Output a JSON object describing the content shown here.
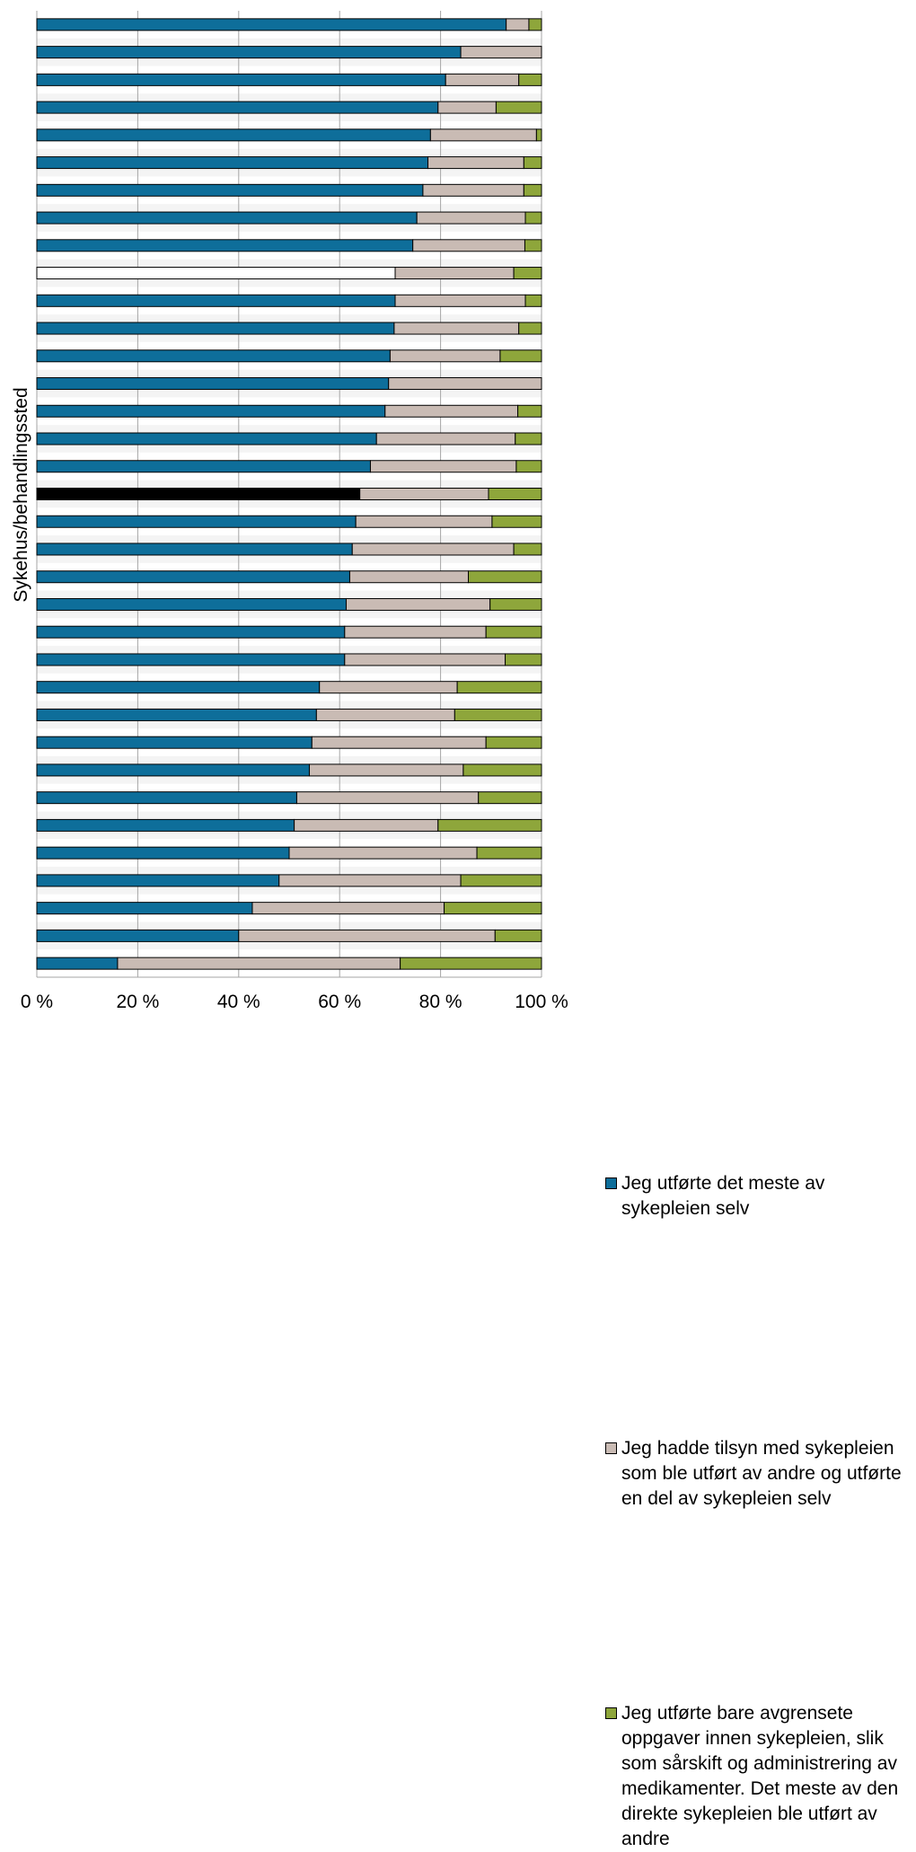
{
  "chart_data": {
    "type": "bar",
    "orientation": "horizontal",
    "stacked": true,
    "percent_stacked": true,
    "ylabel": "Sykehus/behandlingssted",
    "xlabel": "",
    "xlim": [
      0,
      100
    ],
    "x_ticks": [
      "0 %",
      "20 %",
      "40 %",
      "60 %",
      "80 %",
      "100 %"
    ],
    "grid": true,
    "legend_position": "right",
    "highlight": [
      {
        "index": 9,
        "style": "outline-white"
      },
      {
        "index": 17,
        "style": "black"
      }
    ],
    "series": [
      {
        "name": "Jeg utførte det meste av sykepleien selv",
        "color": "#0e6e9a",
        "values": [
          93,
          84,
          81,
          79.5,
          78,
          77.5,
          76.5,
          75.3,
          74.5,
          71,
          71,
          70.8,
          70,
          69.7,
          69,
          67.3,
          66.1,
          64,
          63.2,
          62.5,
          62,
          61.3,
          61,
          61,
          56,
          55.4,
          54.5,
          54,
          51.5,
          51,
          50,
          48,
          42.7,
          40,
          16
        ]
      },
      {
        "name": "Jeg hadde tilsyn med sykepleien som ble utført av andre og utførte en del av sykepleien selv",
        "color": "#c9bbb4",
        "values": [
          4.5,
          16,
          14.5,
          11.5,
          21,
          19,
          20,
          21.5,
          22.2,
          23.5,
          25.8,
          24.7,
          21.8,
          30.3,
          26.3,
          27.5,
          28.9,
          25.5,
          27,
          32,
          23.5,
          28.5,
          28,
          31.8,
          27.3,
          27.4,
          34.5,
          30.5,
          36,
          28.5,
          37.2,
          36,
          38,
          50.8,
          56
        ]
      },
      {
        "name": "Jeg utførte bare avgrensete oppgaver innen sykepleien, slik som sårskift og administrering av medikamenter. Det meste av den direkte sykepleien ble utført av andre",
        "color": "#8ea63b",
        "values": [
          2.5,
          0,
          4.5,
          9,
          1,
          3.5,
          3.5,
          3.2,
          3.3,
          5.5,
          3.2,
          4.5,
          8.2,
          0,
          4.7,
          5.2,
          5,
          10.5,
          9.8,
          5.5,
          14.5,
          10.2,
          11,
          7.2,
          16.7,
          17.2,
          11,
          15.5,
          12.5,
          20.5,
          12.8,
          16,
          19.3,
          9.2,
          28
        ]
      }
    ]
  },
  "legend": {
    "items": [
      {
        "label": "Jeg utførte det meste av sykepleien selv",
        "color": "#0e6e9a"
      },
      {
        "label": "Jeg hadde tilsyn med sykepleien som ble utført av andre og utførte en del av sykepleien selv",
        "color": "#c9bbb4"
      },
      {
        "label": "Jeg utførte bare avgrensete oppgaver innen sykepleien, slik som sårskift og administrering av medikamenter. Det meste av den direkte sykepleien ble utført av andre",
        "color": "#8ea63b"
      }
    ]
  }
}
